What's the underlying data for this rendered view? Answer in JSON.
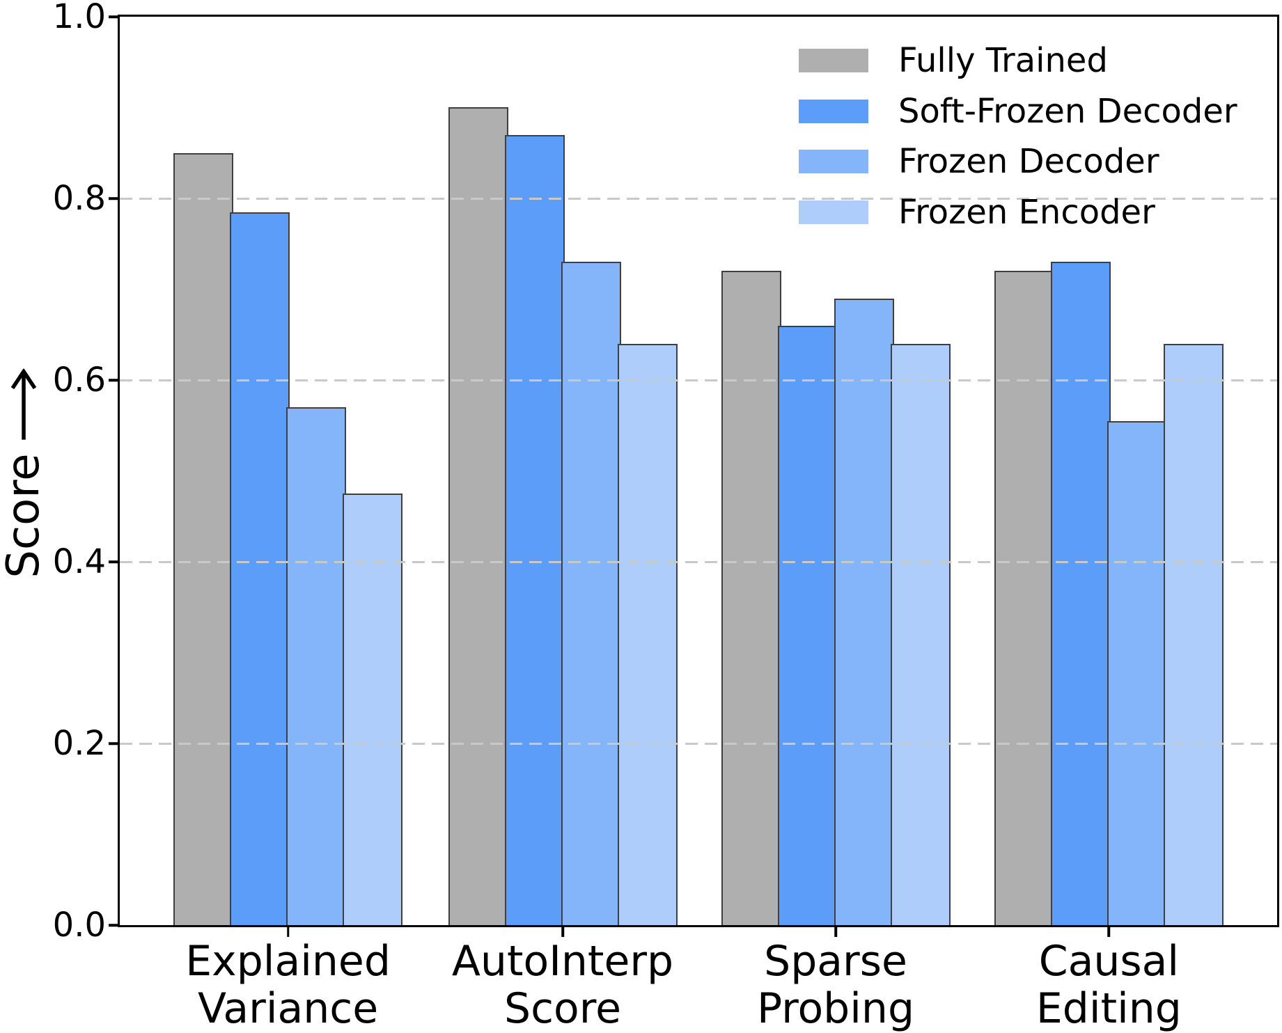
{
  "figure": {
    "background": "#ffffff"
  },
  "y_axis": {
    "label": "Score",
    "arrow_direction": "up",
    "tick_labels": [
      "0.0",
      "0.2",
      "0.4",
      "0.6",
      "0.8",
      "1.0"
    ]
  },
  "x_axis": {
    "category_labels": [
      [
        "Explained",
        "Variance"
      ],
      [
        "AutoInterp",
        "Score"
      ],
      [
        "Sparse",
        "Probing"
      ],
      [
        "Causal",
        "Editing"
      ]
    ]
  },
  "legend": {
    "position": "upper-right",
    "items": [
      {
        "label": "Fully Trained",
        "color": "#afafaf"
      },
      {
        "label": "Soft-Frozen Decoder",
        "color": "#5b9df9"
      },
      {
        "label": "Frozen Decoder",
        "color": "#84b4fa"
      },
      {
        "label": "Frozen Encoder",
        "color": "#aecdfb"
      }
    ]
  },
  "chart_data": {
    "type": "bar",
    "title": "",
    "xlabel": "",
    "ylabel": "Score →",
    "ylim": [
      0.0,
      1.0
    ],
    "yticks": [
      0.0,
      0.2,
      0.4,
      0.6,
      0.8,
      1.0
    ],
    "grid": "horizontal dashed gridlines at 0.2 intervals, drawn over bars",
    "legend_position": "upper right, no frame",
    "bar_edge_color": "#3f3f3f",
    "categories": [
      "Explained Variance",
      "AutoInterp Score",
      "Sparse Probing",
      "Causal Editing"
    ],
    "series": [
      {
        "name": "Fully Trained",
        "color": "#afafaf",
        "values": [
          0.85,
          0.9,
          0.72,
          0.72
        ]
      },
      {
        "name": "Soft-Frozen Decoder",
        "color": "#5b9df9",
        "values": [
          0.785,
          0.87,
          0.66,
          0.73
        ]
      },
      {
        "name": "Frozen Decoder",
        "color": "#84b4fa",
        "values": [
          0.57,
          0.73,
          0.69,
          0.555
        ]
      },
      {
        "name": "Frozen Encoder",
        "color": "#aecdfb",
        "values": [
          0.475,
          0.64,
          0.64,
          0.64
        ]
      }
    ]
  }
}
